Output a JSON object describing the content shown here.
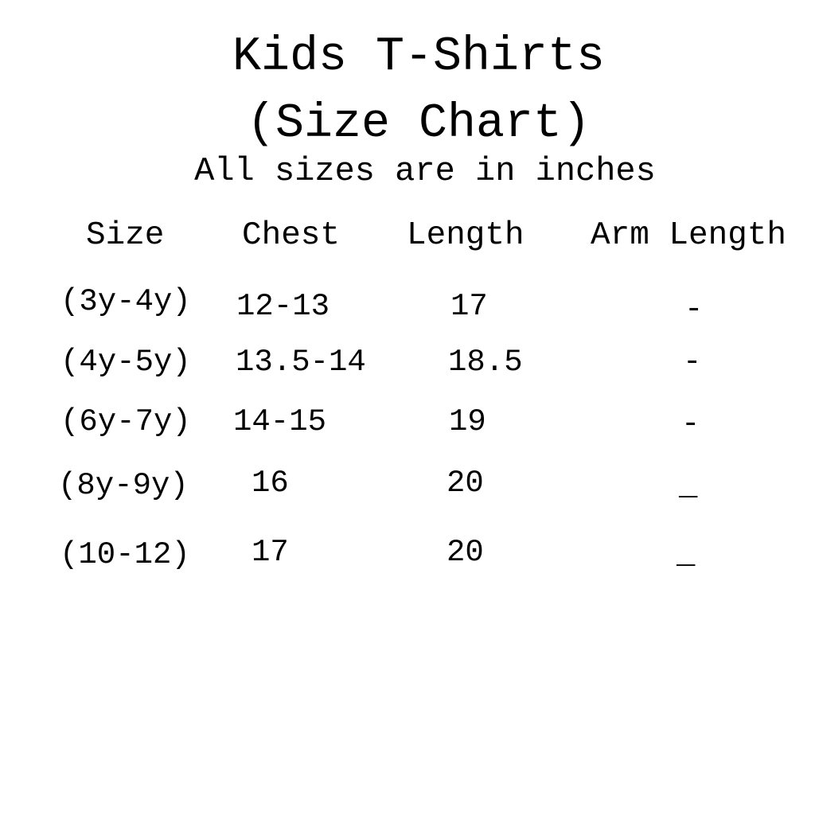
{
  "title_line1": "Kids T-Shirts",
  "title_line2": "(Size Chart)",
  "subtitle": "All sizes are in inches",
  "headers": [
    "Size",
    "Chest",
    "Length",
    "Arm Length"
  ],
  "rows": [
    [
      "(3y-4y)",
      "12-13",
      "17",
      "-"
    ],
    [
      "(4y-5y)",
      "13.5-14",
      "18.5",
      "-"
    ],
    [
      "(6y-7y)",
      "14-15",
      "19",
      "-"
    ],
    [
      "(8y-9y)",
      "16",
      "20",
      "_"
    ],
    [
      "(10-12)",
      "17",
      "20",
      "_"
    ]
  ]
}
